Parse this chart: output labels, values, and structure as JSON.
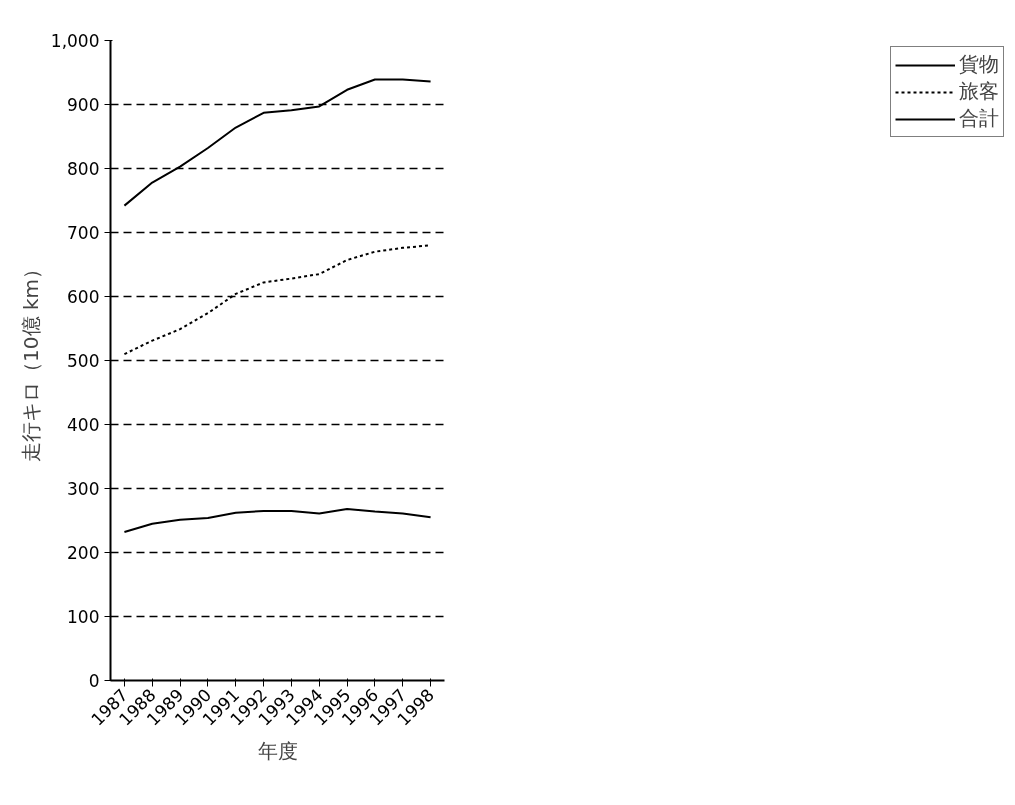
{
  "chart_data": {
    "type": "line",
    "xlabel": "年度",
    "ylabel": "走行キロ（10億 km）",
    "categories": [
      "1987",
      "1988",
      "1989",
      "1990",
      "1991",
      "1992",
      "1993",
      "1994",
      "1995",
      "1996",
      "1997",
      "1998"
    ],
    "series": [
      {
        "name": "貨物",
        "color": "#000000",
        "line_style": "solid",
        "values": [
          232,
          245,
          251,
          254,
          262,
          265,
          265,
          261,
          268,
          264,
          261,
          255
        ]
      },
      {
        "name": "旅客",
        "color": "#000000",
        "line_style": "dotted",
        "values": [
          510,
          531,
          549,
          574,
          604,
          622,
          628,
          635,
          657,
          670,
          676,
          680
        ]
      },
      {
        "name": "合計",
        "color": "#000000",
        "line_style": "solid",
        "values": [
          742,
          778,
          803,
          832,
          864,
          887,
          891,
          897,
          923,
          939,
          939,
          936
        ]
      }
    ],
    "ylim": [
      0,
      1000
    ],
    "yticks": [
      0,
      100,
      200,
      300,
      400,
      500,
      600,
      700,
      800,
      900,
      {
        "value": 1000,
        "label": "1,000"
      }
    ],
    "grid": "y",
    "legend": "right",
    "marker": "none"
  }
}
